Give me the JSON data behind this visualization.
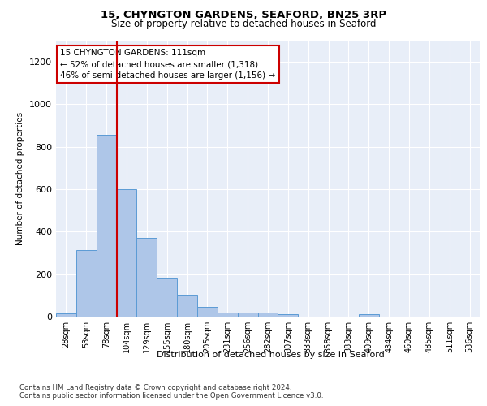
{
  "title1": "15, CHYNGTON GARDENS, SEAFORD, BN25 3RP",
  "title2": "Size of property relative to detached houses in Seaford",
  "xlabel": "Distribution of detached houses by size in Seaford",
  "ylabel": "Number of detached properties",
  "footnote1": "Contains HM Land Registry data © Crown copyright and database right 2024.",
  "footnote2": "Contains public sector information licensed under the Open Government Licence v3.0.",
  "annotation_line1": "15 CHYNGTON GARDENS: 111sqm",
  "annotation_line2": "← 52% of detached houses are smaller (1,318)",
  "annotation_line3": "46% of semi-detached houses are larger (1,156) →",
  "bar_labels": [
    "28sqm",
    "53sqm",
    "78sqm",
    "104sqm",
    "129sqm",
    "155sqm",
    "180sqm",
    "205sqm",
    "231sqm",
    "256sqm",
    "282sqm",
    "307sqm",
    "333sqm",
    "358sqm",
    "383sqm",
    "409sqm",
    "434sqm",
    "460sqm",
    "485sqm",
    "511sqm",
    "536sqm"
  ],
  "bar_values": [
    15,
    315,
    855,
    600,
    370,
    185,
    105,
    45,
    20,
    18,
    20,
    10,
    0,
    0,
    0,
    12,
    0,
    0,
    0,
    0,
    0
  ],
  "bar_color": "#aec6e8",
  "bar_edgecolor": "#5b9bd5",
  "vline_x": 2.5,
  "ylim": [
    0,
    1300
  ],
  "yticks": [
    0,
    200,
    400,
    600,
    800,
    1000,
    1200
  ],
  "bg_color": "#e8eef8",
  "annotation_box_color": "#cc0000",
  "vline_color": "#cc0000"
}
